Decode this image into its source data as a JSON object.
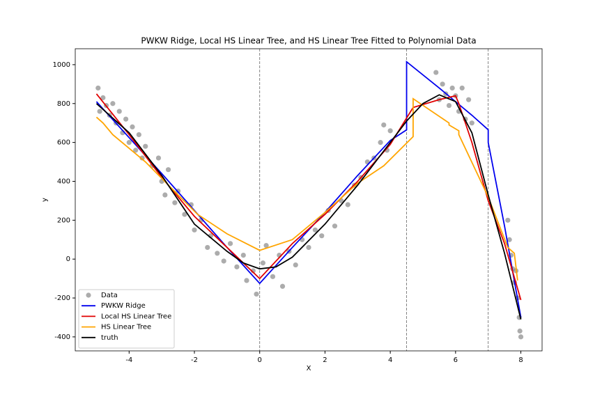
{
  "chart_data": {
    "type": "line",
    "title": "PWKW Ridge, Local HS Linear Tree, and HS Linear Tree Fitted to Polynomial Data",
    "xlabel": "X",
    "ylabel": "y",
    "xlim": [
      -5.65,
      8.65
    ],
    "ylim": [
      -472,
      1082
    ],
    "xticks": [
      -4,
      -2,
      0,
      2,
      4,
      6,
      8
    ],
    "yticks": [
      -400,
      -200,
      0,
      200,
      400,
      600,
      800,
      1000
    ],
    "vlines": [
      0,
      4.5,
      7
    ],
    "legend": "lower left",
    "scatter": {
      "name": "Data",
      "color": "#808080",
      "x": [
        -4.95,
        -4.9,
        -4.8,
        -4.7,
        -4.6,
        -4.5,
        -4.4,
        -4.3,
        -4.2,
        -4.1,
        -4.0,
        -3.9,
        -3.8,
        -3.7,
        -3.6,
        -3.5,
        -3.3,
        -3.1,
        -3.0,
        -2.9,
        -2.8,
        -2.6,
        -2.5,
        -2.3,
        -2.1,
        -2.0,
        -1.8,
        -1.6,
        -1.5,
        -1.3,
        -1.1,
        -0.9,
        -0.7,
        -0.5,
        -0.4,
        -0.2,
        -0.1,
        0.1,
        0.2,
        0.4,
        0.6,
        0.7,
        0.9,
        1.1,
        1.3,
        1.5,
        1.7,
        1.9,
        2.1,
        2.3,
        2.5,
        2.7,
        2.9,
        3.1,
        3.3,
        3.5,
        3.7,
        3.8,
        3.9,
        4.0,
        5.4,
        5.5,
        5.6,
        5.7,
        5.8,
        5.9,
        6.0,
        6.1,
        6.2,
        6.3,
        6.4,
        6.5,
        7.6,
        7.65,
        7.7,
        7.75,
        7.8,
        7.85,
        7.9,
        7.95,
        8.0,
        7.97
      ],
      "values": [
        880,
        760,
        830,
        790,
        740,
        800,
        700,
        760,
        650,
        720,
        600,
        680,
        560,
        640,
        520,
        580,
        480,
        520,
        400,
        330,
        460,
        290,
        350,
        230,
        280,
        150,
        200,
        60,
        120,
        30,
        -10,
        80,
        -40,
        20,
        -110,
        -60,
        -180,
        -20,
        70,
        -90,
        20,
        -140,
        40,
        -30,
        100,
        60,
        150,
        120,
        250,
        170,
        300,
        280,
        380,
        420,
        500,
        520,
        600,
        690,
        560,
        660,
        960,
        820,
        900,
        850,
        790,
        880,
        840,
        760,
        880,
        720,
        820,
        700,
        200,
        100,
        20,
        -50,
        -120,
        -60,
        -200,
        -300,
        -400,
        -370
      ]
    },
    "series": [
      {
        "name": "PWKW Ridge",
        "color": "#0000ee",
        "x": [
          -5,
          -3,
          -1,
          0,
          1,
          2,
          3,
          4,
          4.5,
          4.5,
          5.5,
          6.5,
          7,
          7,
          7.5,
          8
        ],
        "values": [
          810,
          440,
          60,
          -125,
          60,
          240,
          430,
          610,
          665,
          1015,
          880,
          740,
          665,
          600,
          170,
          -300
        ]
      },
      {
        "name": "Local HS Linear Tree",
        "color": "#e00000",
        "x": [
          -5,
          -4,
          -3,
          -2,
          -1,
          0,
          1,
          2,
          3,
          4,
          4.7,
          5.5,
          6,
          6.1,
          6.5,
          7,
          7.5,
          8
        ],
        "values": [
          850,
          640,
          420,
          220,
          60,
          -100,
          80,
          230,
          400,
          590,
          780,
          820,
          840,
          800,
          600,
          300,
          80,
          -210
        ]
      },
      {
        "name": "HS Linear Tree",
        "color": "#ffa500",
        "x": [
          -5,
          -4.8,
          -4.5,
          -3.5,
          -2.5,
          -1.9,
          -1,
          0,
          1,
          2,
          3,
          3.8,
          4.7,
          4.7,
          5.8,
          5.8,
          6.1,
          6.1,
          7,
          7.6,
          7.8,
          7.9
        ],
        "values": [
          730,
          700,
          640,
          500,
          330,
          230,
          130,
          45,
          100,
          240,
          390,
          480,
          630,
          825,
          700,
          690,
          660,
          640,
          320,
          60,
          30,
          -110
        ]
      },
      {
        "name": "truth",
        "color": "#000000",
        "x": [
          -5,
          -4,
          -3,
          -2,
          -1,
          -0.5,
          0,
          0.5,
          1,
          2,
          3,
          4,
          4.5,
          5,
          5.5,
          6,
          6.5,
          7,
          7.5,
          8
        ],
        "values": [
          800,
          650,
          430,
          180,
          40,
          -20,
          -50,
          -40,
          10,
          180,
          380,
          600,
          710,
          800,
          845,
          810,
          650,
          330,
          30,
          -310
        ]
      }
    ]
  }
}
